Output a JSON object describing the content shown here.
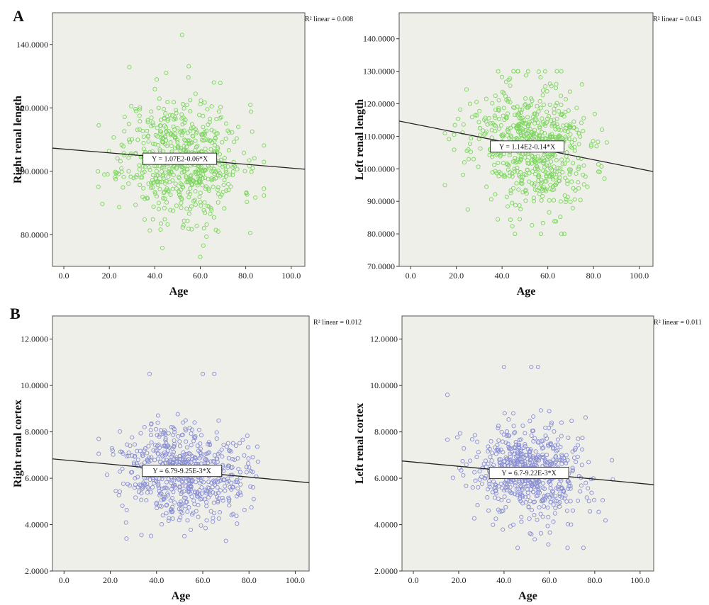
{
  "panel_labels": {
    "a": "A",
    "b": "B"
  },
  "colors": {
    "green_marker": "#7cd65e",
    "blue_marker": "#8a8fd4",
    "plot_bg": "#efefe9",
    "fit_line": "#222222"
  },
  "chart_data": [
    {
      "type": "scatter",
      "panel": "A",
      "ylabel": "Right renal length",
      "xlabel": "Age",
      "xlim": [
        -5,
        106
      ],
      "ylim": [
        70,
        150
      ],
      "xticks": [
        "0.0",
        "20.0",
        "40.0",
        "60.0",
        "80.0",
        "100.0"
      ],
      "yticks": [
        "80.0000",
        "100.0000",
        "120.0000",
        "140.0000"
      ],
      "r2_label": "R² linear = 0.008",
      "equation": "Y = 1.07E2-0.06*X",
      "fit": {
        "intercept": 107,
        "slope": -0.06
      },
      "marker_color": "#7cd65e",
      "sample": {
        "n": 620,
        "x_mean": 52,
        "x_sd": 13,
        "x_min": 15,
        "x_max": 88,
        "y_sd": 9.5,
        "y_min": 73,
        "y_max": 143,
        "seed": 11
      },
      "highlights": [
        [
          52,
          143
        ],
        [
          60,
          73
        ],
        [
          82,
          80.5
        ],
        [
          15,
          100
        ],
        [
          45,
          131
        ],
        [
          66,
          128
        ]
      ]
    },
    {
      "type": "scatter",
      "panel": "A",
      "ylabel": "Left renal length",
      "xlabel": "Age",
      "xlim": [
        -5,
        106
      ],
      "ylim": [
        70,
        148
      ],
      "xticks": [
        "0.0",
        "20.0",
        "40.0",
        "60.0",
        "80.0",
        "100.0"
      ],
      "yticks": [
        "70.0000",
        "80.0000",
        "90.0000",
        "100.0000",
        "110.0000",
        "120.0000",
        "130.0000",
        "140.0000"
      ],
      "r2_label": "R² linear = 0.043",
      "equation": "Y = 1.14E2-0.14*X",
      "fit": {
        "intercept": 114,
        "slope": -0.14
      },
      "marker_color": "#7cd65e",
      "sample": {
        "n": 620,
        "x_mean": 52,
        "x_sd": 13,
        "x_min": 15,
        "x_max": 88,
        "y_sd": 9.5,
        "y_min": 80,
        "y_max": 130,
        "seed": 23
      },
      "highlights": [
        [
          15,
          95
        ],
        [
          57,
          80
        ],
        [
          25,
          87.5
        ],
        [
          45,
          130
        ],
        [
          66,
          80
        ]
      ]
    },
    {
      "type": "scatter",
      "panel": "B",
      "ylabel": "Right renal cortex",
      "xlabel": "Age",
      "xlim": [
        -5,
        106
      ],
      "ylim": [
        2,
        13
      ],
      "xticks": [
        "0.0",
        "20.0",
        "40.0",
        "60.0",
        "80.0",
        "100.0"
      ],
      "yticks": [
        "2.0000",
        "4.0000",
        "6.0000",
        "8.0000",
        "10.0000",
        "12.0000"
      ],
      "r2_label": "R² linear = 0.012",
      "equation": "Y = 6.79-9.25E-3*X",
      "fit": {
        "intercept": 6.79,
        "slope": -0.00925
      },
      "marker_color": "#8a8fd4",
      "sample": {
        "n": 620,
        "x_mean": 52,
        "x_sd": 13,
        "x_min": 15,
        "x_max": 88,
        "y_sd": 1.0,
        "y_min": 3.3,
        "y_max": 10.5,
        "seed": 37
      },
      "highlights": [
        [
          37,
          10.5
        ],
        [
          60,
          10.5
        ],
        [
          65,
          10.5
        ],
        [
          15,
          7.7
        ],
        [
          27,
          3.4
        ],
        [
          70,
          3.3
        ]
      ]
    },
    {
      "type": "scatter",
      "panel": "B",
      "ylabel": "Left renal cortex",
      "xlabel": "Age",
      "xlim": [
        -5,
        106
      ],
      "ylim": [
        2,
        13
      ],
      "xticks": [
        "0.0",
        "20.0",
        "40.0",
        "60.0",
        "80.0",
        "100.0"
      ],
      "yticks": [
        "2.0000",
        "4.0000",
        "6.0000",
        "8.0000",
        "10.0000",
        "12.0000"
      ],
      "r2_label": "R² linear = 0.011",
      "equation": "Y = 6.7-9.22E-3*X",
      "fit": {
        "intercept": 6.7,
        "slope": -0.00922
      },
      "marker_color": "#8a8fd4",
      "sample": {
        "n": 620,
        "x_mean": 52,
        "x_sd": 13,
        "x_min": 15,
        "x_max": 88,
        "y_sd": 1.0,
        "y_min": 3.0,
        "y_max": 10.8,
        "seed": 53
      },
      "highlights": [
        [
          15,
          9.6
        ],
        [
          40,
          10.8
        ],
        [
          52,
          10.8
        ],
        [
          55,
          10.8
        ],
        [
          46,
          3.0
        ],
        [
          68,
          3.0
        ],
        [
          75,
          3.0
        ]
      ]
    }
  ]
}
